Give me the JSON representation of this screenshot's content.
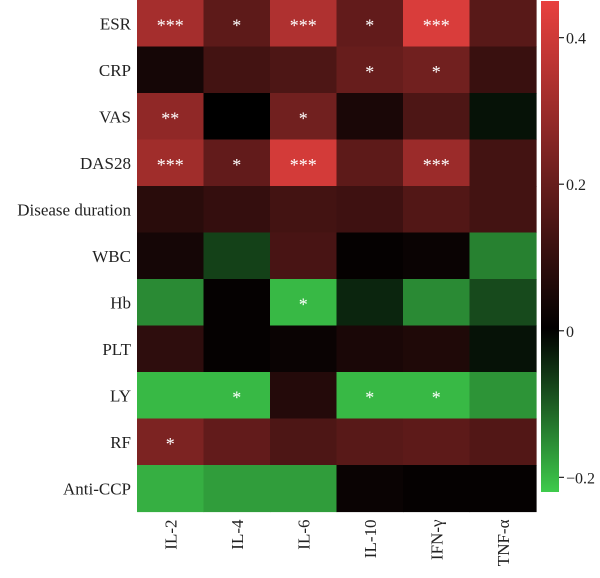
{
  "chart_data": {
    "type": "heatmap",
    "title": "",
    "xlabel": "",
    "ylabel": "",
    "rows": [
      "ESR",
      "CRP",
      "VAS",
      "DAS28",
      "Disease duration",
      "WBC",
      "Hb",
      "PLT",
      "LY",
      "RF",
      "Anti-CCP"
    ],
    "columns": [
      "IL-2",
      "IL-4",
      "IL-6",
      "IL-10",
      "IFN-γ",
      "TNF-α"
    ],
    "values": [
      [
        0.32,
        0.18,
        0.34,
        0.19,
        0.42,
        0.17
      ],
      [
        0.04,
        0.13,
        0.15,
        0.2,
        0.22,
        0.11
      ],
      [
        0.28,
        0.0,
        0.22,
        0.05,
        0.15,
        -0.02
      ],
      [
        0.31,
        0.19,
        0.41,
        0.18,
        0.3,
        0.13
      ],
      [
        0.08,
        0.1,
        0.13,
        0.12,
        0.16,
        0.13
      ],
      [
        0.04,
        -0.07,
        0.14,
        0.01,
        0.02,
        -0.14
      ],
      [
        -0.15,
        0.01,
        -0.2,
        -0.04,
        -0.15,
        -0.08
      ],
      [
        0.09,
        0.01,
        0.02,
        0.05,
        0.06,
        -0.02
      ],
      [
        -0.2,
        -0.2,
        0.07,
        -0.2,
        -0.2,
        -0.16
      ],
      [
        0.24,
        0.19,
        0.15,
        0.17,
        0.18,
        0.16
      ],
      [
        -0.19,
        -0.17,
        -0.17,
        0.02,
        0.01,
        0.01
      ]
    ],
    "annotations": [
      [
        "***",
        "*",
        "***",
        "*",
        "***",
        ""
      ],
      [
        "",
        "",
        "",
        "*",
        "*",
        ""
      ],
      [
        "**",
        "",
        "*",
        "",
        "",
        ""
      ],
      [
        "***",
        "*",
        "***",
        "",
        "***",
        ""
      ],
      [
        "",
        "",
        "",
        "",
        "",
        ""
      ],
      [
        "",
        "",
        "",
        "",
        "",
        ""
      ],
      [
        "",
        "",
        "*",
        "",
        "",
        ""
      ],
      [
        "",
        "",
        "",
        "",
        "",
        ""
      ],
      [
        "",
        "*",
        "",
        "*",
        "*",
        ""
      ],
      [
        "*",
        "",
        "",
        "",
        "",
        ""
      ],
      [
        "",
        "",
        "",
        "",
        "",
        ""
      ]
    ],
    "color_range": [
      -0.22,
      0.45
    ],
    "colors": {
      "low": "#3ecb4c",
      "mid": "#000000",
      "high": "#e8413f"
    },
    "colorbar_ticks": [
      0.4,
      0.2,
      0,
      -0.2
    ],
    "colorbar_tick_labels": [
      "0.4",
      "0.2",
      "0",
      "−0.2"
    ],
    "legend_position": "right"
  }
}
